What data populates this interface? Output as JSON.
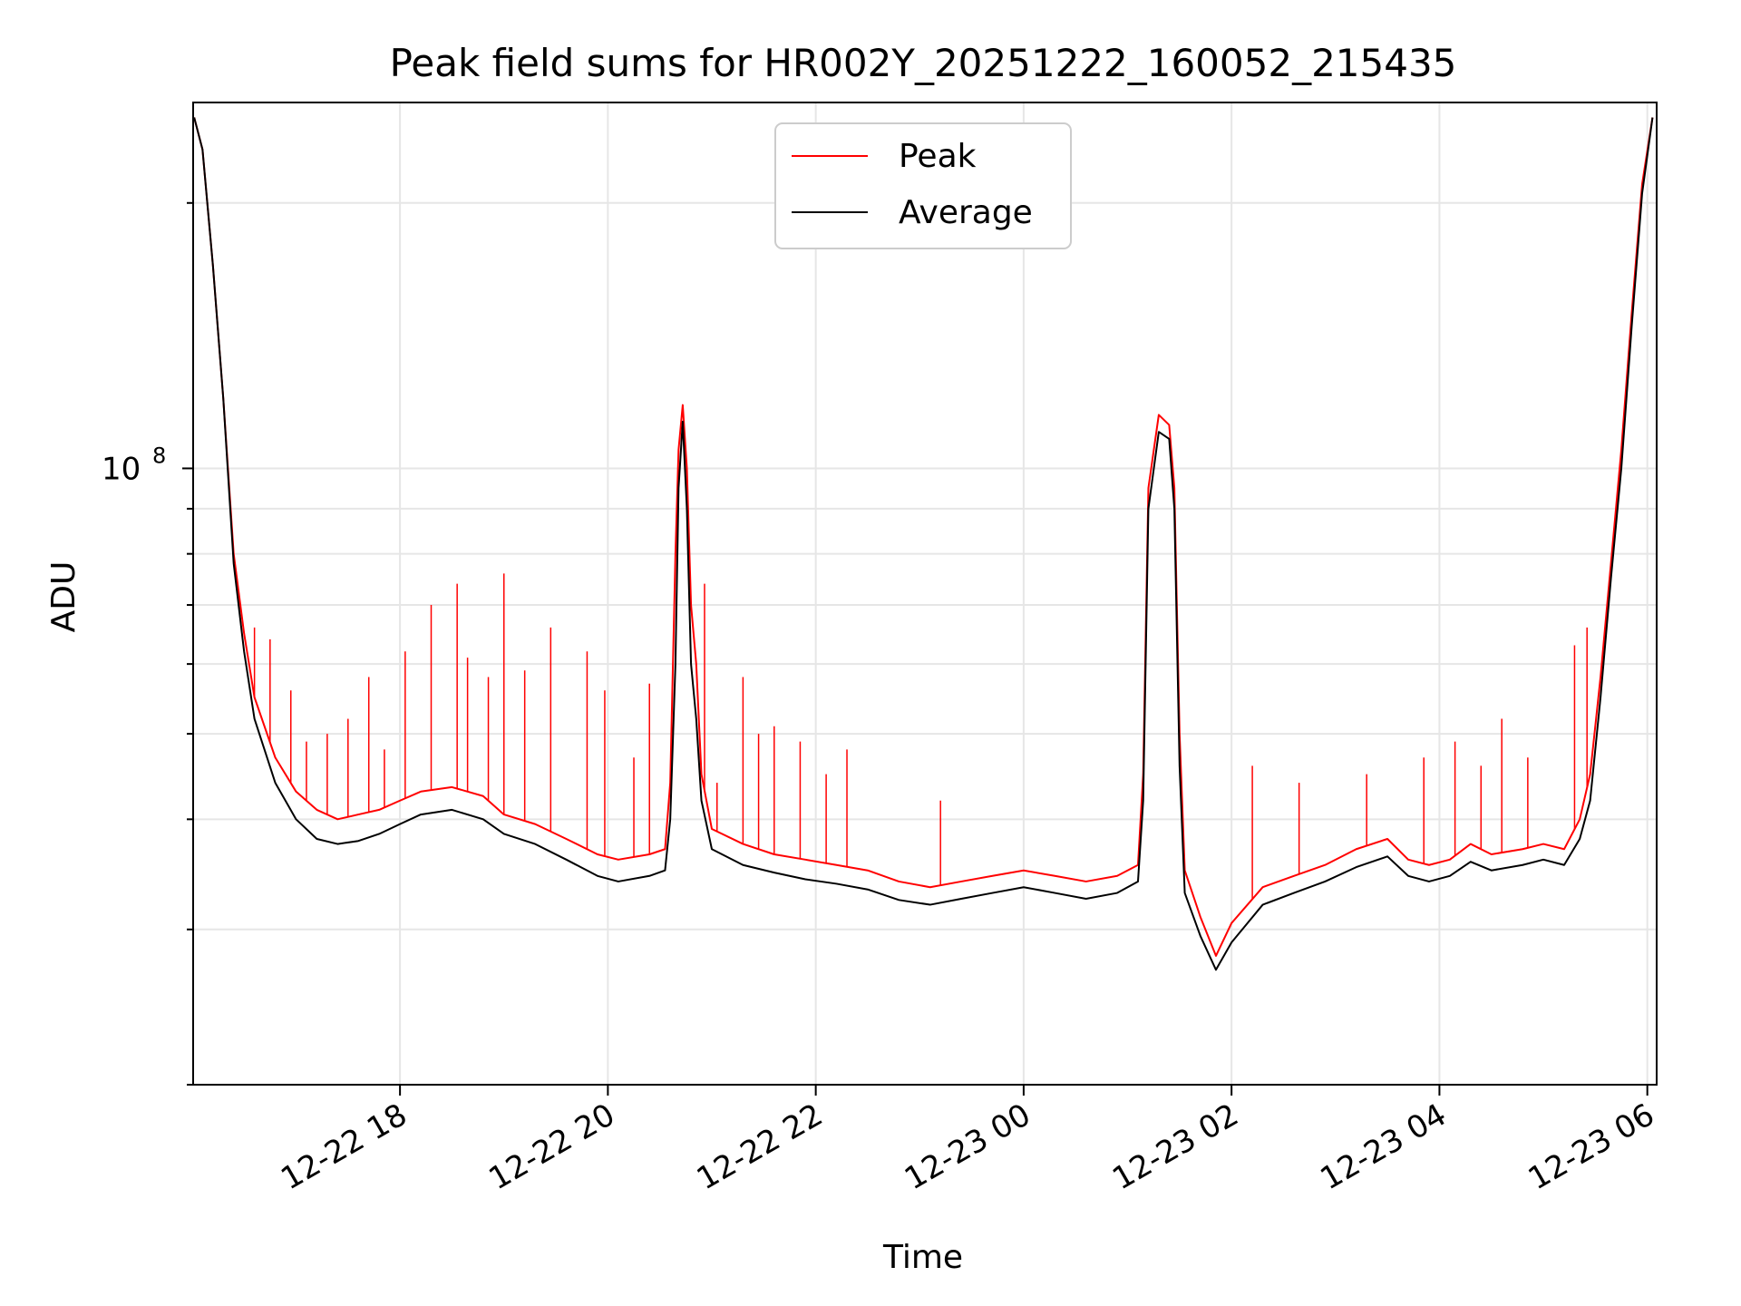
{
  "chart_data": {
    "type": "line",
    "title": "Peak field sums for HR002Y_20251222_160052_215435",
    "xlabel": "Time",
    "ylabel": "ADU",
    "yscale": "log",
    "y_tick_label": {
      "base": "10",
      "exponent": "8"
    },
    "ylim": [
      20000000,
      260000000
    ],
    "xlim_hours": [
      -1.99,
      12.09
    ],
    "x_tick_labels": [
      "12-22 18",
      "12-22 20",
      "12-22 22",
      "12-23 00",
      "12-23 02",
      "12-23 04",
      "12-23 06"
    ],
    "x_tick_hours": [
      0,
      2,
      4,
      6,
      8,
      10,
      12
    ],
    "grid": true,
    "legend_position": "top-center",
    "series": [
      {
        "name": "Peak",
        "color": "#ff0000",
        "points": [
          [
            -1.98,
            250000000
          ],
          [
            -1.9,
            230000000
          ],
          [
            -1.8,
            170000000
          ],
          [
            -1.7,
            120000000
          ],
          [
            -1.6,
            80000000
          ],
          [
            -1.5,
            65000000
          ],
          [
            -1.4,
            55000000
          ],
          [
            -1.2,
            47000000
          ],
          [
            -1.0,
            43000000
          ],
          [
            -0.8,
            41000000
          ],
          [
            -0.6,
            40000000
          ],
          [
            -0.4,
            40500000
          ],
          [
            -0.2,
            41000000
          ],
          [
            0.0,
            42000000
          ],
          [
            0.2,
            43000000
          ],
          [
            0.5,
            43500000
          ],
          [
            0.8,
            42500000
          ],
          [
            1.0,
            40500000
          ],
          [
            1.3,
            39500000
          ],
          [
            1.6,
            38000000
          ],
          [
            1.9,
            36500000
          ],
          [
            2.1,
            36000000
          ],
          [
            2.4,
            36500000
          ],
          [
            2.55,
            37000000
          ],
          [
            2.6,
            44000000
          ],
          [
            2.65,
            80000000
          ],
          [
            2.68,
            105000000
          ],
          [
            2.72,
            118000000
          ],
          [
            2.76,
            100000000
          ],
          [
            2.8,
            70000000
          ],
          [
            2.85,
            60000000
          ],
          [
            2.9,
            45000000
          ],
          [
            3.0,
            39000000
          ],
          [
            3.3,
            37500000
          ],
          [
            3.6,
            36500000
          ],
          [
            3.9,
            36000000
          ],
          [
            4.2,
            35500000
          ],
          [
            4.5,
            35000000
          ],
          [
            4.8,
            34000000
          ],
          [
            5.1,
            33500000
          ],
          [
            5.4,
            34000000
          ],
          [
            5.7,
            34500000
          ],
          [
            6.0,
            35000000
          ],
          [
            6.3,
            34500000
          ],
          [
            6.6,
            34000000
          ],
          [
            6.9,
            34500000
          ],
          [
            7.1,
            35500000
          ],
          [
            7.15,
            45000000
          ],
          [
            7.2,
            95000000
          ],
          [
            7.3,
            115000000
          ],
          [
            7.4,
            112000000
          ],
          [
            7.45,
            95000000
          ],
          [
            7.5,
            50000000
          ],
          [
            7.55,
            35000000
          ],
          [
            7.7,
            31000000
          ],
          [
            7.85,
            28000000
          ],
          [
            8.0,
            30500000
          ],
          [
            8.3,
            33500000
          ],
          [
            8.6,
            34500000
          ],
          [
            8.9,
            35500000
          ],
          [
            9.2,
            37000000
          ],
          [
            9.5,
            38000000
          ],
          [
            9.7,
            36000000
          ],
          [
            9.9,
            35500000
          ],
          [
            10.1,
            36000000
          ],
          [
            10.3,
            37500000
          ],
          [
            10.5,
            36500000
          ],
          [
            10.8,
            37000000
          ],
          [
            11.0,
            37500000
          ],
          [
            11.2,
            37000000
          ],
          [
            11.35,
            40000000
          ],
          [
            11.45,
            45000000
          ],
          [
            11.55,
            58000000
          ],
          [
            11.65,
            78000000
          ],
          [
            11.75,
            105000000
          ],
          [
            11.85,
            150000000
          ],
          [
            11.95,
            210000000
          ],
          [
            12.05,
            250000000
          ]
        ],
        "spikes": [
          [
            -1.55,
            72000000
          ],
          [
            -1.4,
            66000000
          ],
          [
            -1.25,
            64000000
          ],
          [
            -1.05,
            56000000
          ],
          [
            -0.9,
            49000000
          ],
          [
            -0.7,
            50000000
          ],
          [
            -0.5,
            52000000
          ],
          [
            -0.3,
            58000000
          ],
          [
            -0.15,
            48000000
          ],
          [
            0.05,
            62000000
          ],
          [
            0.3,
            70000000
          ],
          [
            0.55,
            74000000
          ],
          [
            0.65,
            61000000
          ],
          [
            0.85,
            58000000
          ],
          [
            1.0,
            76000000
          ],
          [
            1.2,
            59000000
          ],
          [
            1.45,
            66000000
          ],
          [
            1.8,
            62000000
          ],
          [
            1.97,
            56000000
          ],
          [
            2.25,
            47000000
          ],
          [
            2.4,
            57000000
          ],
          [
            2.93,
            74000000
          ],
          [
            3.05,
            44000000
          ],
          [
            3.3,
            58000000
          ],
          [
            3.45,
            50000000
          ],
          [
            3.6,
            51000000
          ],
          [
            3.85,
            49000000
          ],
          [
            4.1,
            45000000
          ],
          [
            4.3,
            48000000
          ],
          [
            5.2,
            42000000
          ],
          [
            8.2,
            46000000
          ],
          [
            8.65,
            44000000
          ],
          [
            9.3,
            45000000
          ],
          [
            9.85,
            47000000
          ],
          [
            10.15,
            49000000
          ],
          [
            10.4,
            46000000
          ],
          [
            10.6,
            52000000
          ],
          [
            10.85,
            47000000
          ],
          [
            11.3,
            63000000
          ],
          [
            11.42,
            66000000
          ]
        ]
      },
      {
        "name": "Average",
        "color": "#000000",
        "points": [
          [
            -1.98,
            250000000
          ],
          [
            -1.9,
            230000000
          ],
          [
            -1.8,
            170000000
          ],
          [
            -1.7,
            120000000
          ],
          [
            -1.6,
            78000000
          ],
          [
            -1.5,
            62000000
          ],
          [
            -1.4,
            52000000
          ],
          [
            -1.2,
            44000000
          ],
          [
            -1.0,
            40000000
          ],
          [
            -0.8,
            38000000
          ],
          [
            -0.6,
            37500000
          ],
          [
            -0.4,
            37800000
          ],
          [
            -0.2,
            38500000
          ],
          [
            0.0,
            39500000
          ],
          [
            0.2,
            40500000
          ],
          [
            0.5,
            41000000
          ],
          [
            0.8,
            40000000
          ],
          [
            1.0,
            38500000
          ],
          [
            1.3,
            37500000
          ],
          [
            1.6,
            36000000
          ],
          [
            1.9,
            34500000
          ],
          [
            2.1,
            34000000
          ],
          [
            2.4,
            34500000
          ],
          [
            2.55,
            35000000
          ],
          [
            2.6,
            40000000
          ],
          [
            2.65,
            60000000
          ],
          [
            2.68,
            95000000
          ],
          [
            2.72,
            113000000
          ],
          [
            2.76,
            90000000
          ],
          [
            2.8,
            60000000
          ],
          [
            2.85,
            52000000
          ],
          [
            2.9,
            42000000
          ],
          [
            3.0,
            37000000
          ],
          [
            3.3,
            35500000
          ],
          [
            3.6,
            34800000
          ],
          [
            3.9,
            34200000
          ],
          [
            4.2,
            33800000
          ],
          [
            4.5,
            33300000
          ],
          [
            4.8,
            32400000
          ],
          [
            5.1,
            32000000
          ],
          [
            5.4,
            32500000
          ],
          [
            5.7,
            33000000
          ],
          [
            6.0,
            33500000
          ],
          [
            6.3,
            33000000
          ],
          [
            6.6,
            32500000
          ],
          [
            6.9,
            33000000
          ],
          [
            7.1,
            34000000
          ],
          [
            7.15,
            42000000
          ],
          [
            7.2,
            90000000
          ],
          [
            7.3,
            110000000
          ],
          [
            7.4,
            108000000
          ],
          [
            7.45,
            90000000
          ],
          [
            7.5,
            46000000
          ],
          [
            7.55,
            33000000
          ],
          [
            7.7,
            29500000
          ],
          [
            7.85,
            27000000
          ],
          [
            8.0,
            29000000
          ],
          [
            8.3,
            32000000
          ],
          [
            8.6,
            33000000
          ],
          [
            8.9,
            34000000
          ],
          [
            9.2,
            35300000
          ],
          [
            9.5,
            36300000
          ],
          [
            9.7,
            34500000
          ],
          [
            9.9,
            34000000
          ],
          [
            10.1,
            34500000
          ],
          [
            10.3,
            35800000
          ],
          [
            10.5,
            35000000
          ],
          [
            10.8,
            35500000
          ],
          [
            11.0,
            36000000
          ],
          [
            11.2,
            35500000
          ],
          [
            11.35,
            38000000
          ],
          [
            11.45,
            42000000
          ],
          [
            11.55,
            55000000
          ],
          [
            11.65,
            75000000
          ],
          [
            11.75,
            100000000
          ],
          [
            11.85,
            145000000
          ],
          [
            11.95,
            205000000
          ],
          [
            12.05,
            250000000
          ]
        ]
      }
    ]
  }
}
